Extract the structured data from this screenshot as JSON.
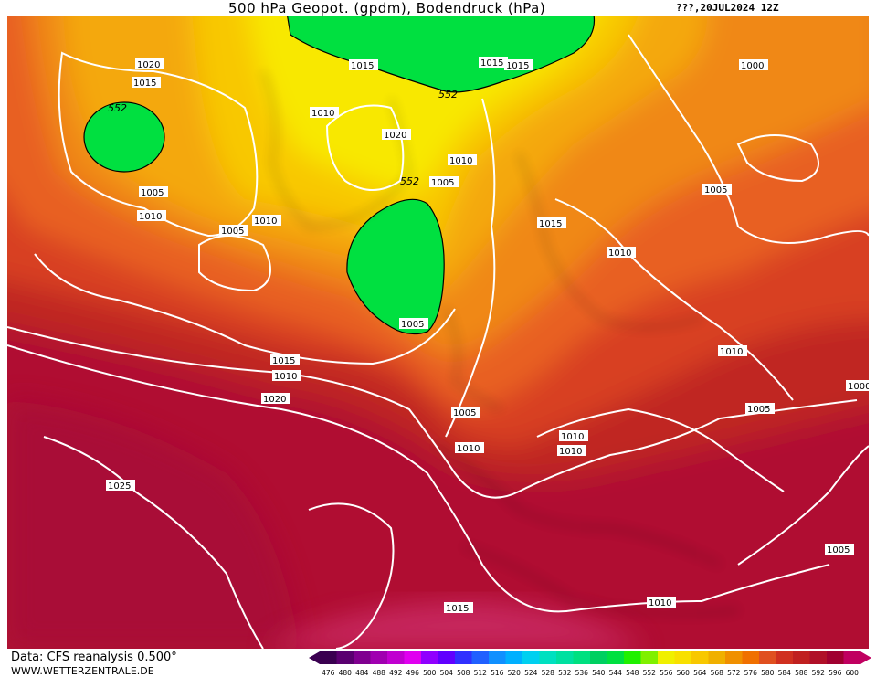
{
  "header": {
    "title": "500 hPa Geopot. (gpdm), Bodendruck (hPa)",
    "run": "???,20JUL2024 12Z"
  },
  "footer": {
    "source": "Data: CFS reanalysis 0.500°",
    "site": "WWW.WETTERZENTRALE.DE"
  },
  "legend": {
    "ticks": [
      "476",
      "480",
      "484",
      "488",
      "492",
      "496",
      "500",
      "504",
      "508",
      "512",
      "516",
      "520",
      "524",
      "528",
      "532",
      "536",
      "540",
      "544",
      "548",
      "552",
      "556",
      "560",
      "564",
      "568",
      "572",
      "576",
      "580",
      "584",
      "588",
      "592",
      "596",
      "600"
    ],
    "colors": [
      "#3a0050",
      "#5a0070",
      "#800090",
      "#a000b0",
      "#c000d0",
      "#e000f0",
      "#9000ff",
      "#6000ff",
      "#3030ff",
      "#2060ff",
      "#1090ff",
      "#00b0ff",
      "#00d0f0",
      "#00e0c0",
      "#00e0a0",
      "#00e080",
      "#00d060",
      "#00e040",
      "#20f000",
      "#80f000",
      "#f0f000",
      "#f8e000",
      "#f8c800",
      "#f0b000",
      "#f09000",
      "#f07000",
      "#e05020",
      "#d03020",
      "#c02020",
      "#b01028",
      "#a00030",
      "#c00060"
    ]
  },
  "map": {
    "geopotential_labels": [
      "552",
      "552",
      "552"
    ],
    "pressure_labels": [
      "1020",
      "1015",
      "1005",
      "1010",
      "1015",
      "1015",
      "1020",
      "1010",
      "1005",
      "1010",
      "1005",
      "1005",
      "1015",
      "1010",
      "1010",
      "1015",
      "1020",
      "1025",
      "1010",
      "1010",
      "1010",
      "1005",
      "1005",
      "1005",
      "1000",
      "1000",
      "1015",
      "1010",
      "1005",
      "1010",
      "1010",
      "1015"
    ]
  }
}
